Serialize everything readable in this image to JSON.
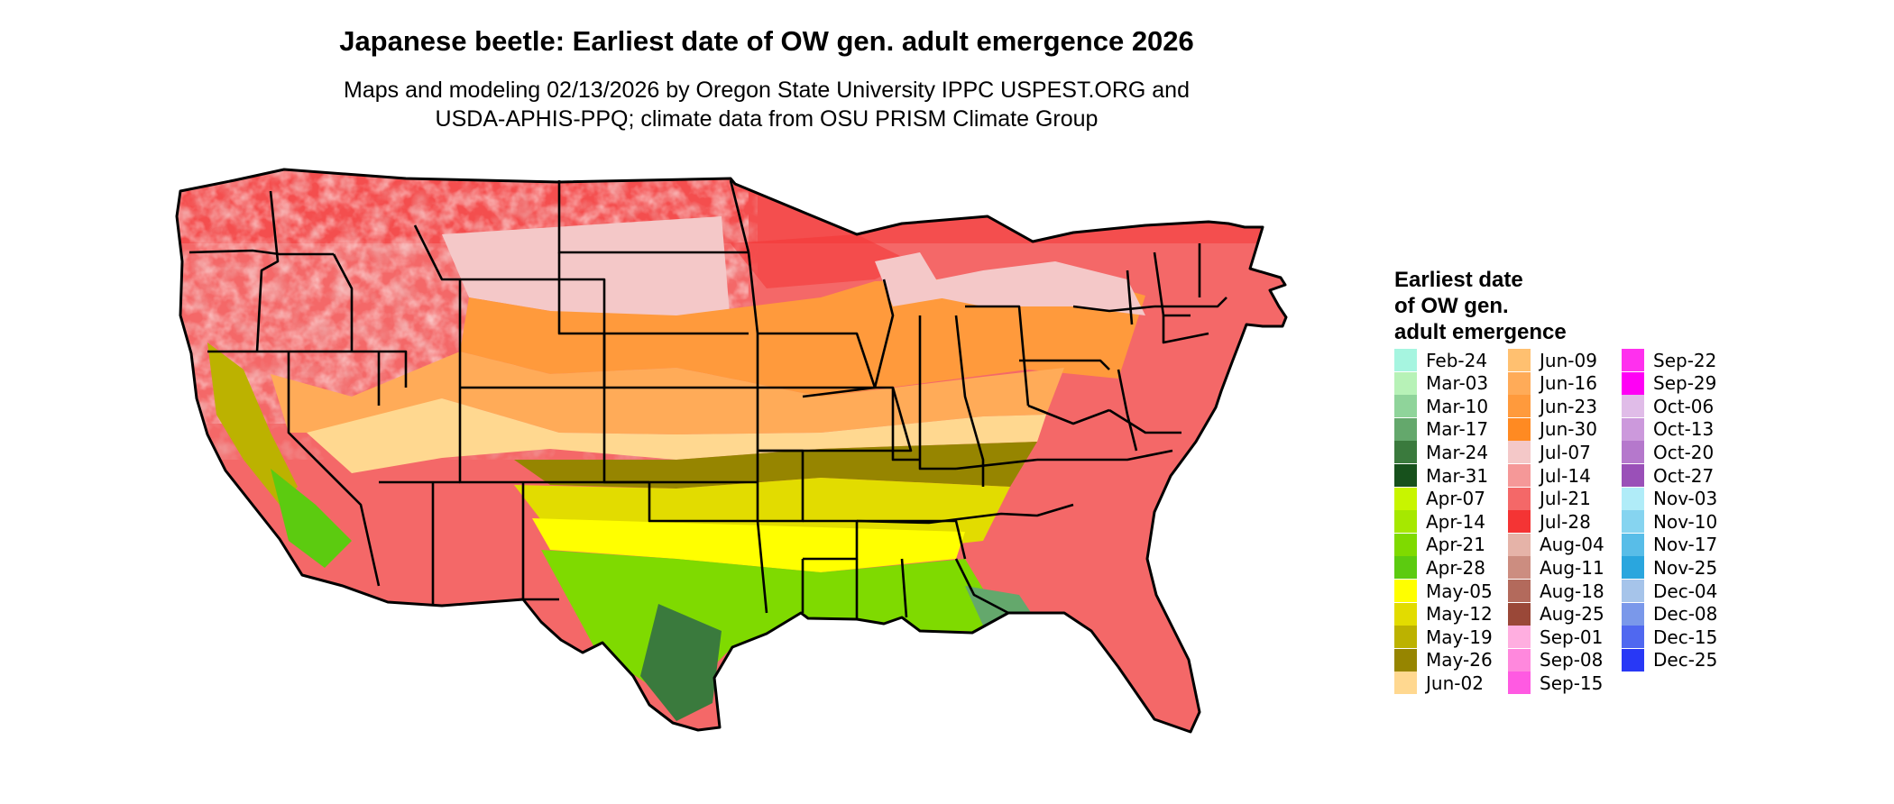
{
  "header": {
    "title": "Japanese beetle: Earliest date of OW gen. adult emergence 2026",
    "subtitle_line1": "Maps and modeling 02/13/2026 by Oregon State University IPPC USPEST.ORG and",
    "subtitle_line2": "USDA-APHIS-PPQ; climate data from OSU PRISM Climate Group"
  },
  "legend": {
    "title_lines": [
      "Earliest date",
      "of OW gen.",
      "adult emergence"
    ],
    "columns": [
      [
        {
          "label": "Feb-24",
          "color": "#a6f5e0"
        },
        {
          "label": "Mar-03",
          "color": "#b7f2b7"
        },
        {
          "label": "Mar-10",
          "color": "#8fd49a"
        },
        {
          "label": "Mar-17",
          "color": "#64a86c"
        },
        {
          "label": "Mar-24",
          "color": "#3a7a3d"
        },
        {
          "label": "Mar-31",
          "color": "#17511c"
        },
        {
          "label": "Apr-07",
          "color": "#c8f500"
        },
        {
          "label": "Apr-14",
          "color": "#a6e800"
        },
        {
          "label": "Apr-21",
          "color": "#7fda00"
        },
        {
          "label": "Apr-28",
          "color": "#5ccb10"
        },
        {
          "label": "May-05",
          "color": "#ffff00"
        },
        {
          "label": "May-12",
          "color": "#e2dc00"
        },
        {
          "label": "May-19",
          "color": "#bcb200"
        },
        {
          "label": "May-26",
          "color": "#968500"
        },
        {
          "label": "Jun-02",
          "color": "#ffd890"
        }
      ],
      [
        {
          "label": "Jun-09",
          "color": "#ffc070"
        },
        {
          "label": "Jun-16",
          "color": "#ffab58"
        },
        {
          "label": "Jun-23",
          "color": "#ff9a3c"
        },
        {
          "label": "Jun-30",
          "color": "#ff8a22"
        },
        {
          "label": "Jul-07",
          "color": "#f4c8c8"
        },
        {
          "label": "Jul-14",
          "color": "#f59898"
        },
        {
          "label": "Jul-21",
          "color": "#f46868"
        },
        {
          "label": "Jul-28",
          "color": "#f43434"
        },
        {
          "label": "Aug-04",
          "color": "#e5b3a8"
        },
        {
          "label": "Aug-11",
          "color": "#cc8d80"
        },
        {
          "label": "Aug-18",
          "color": "#b36a5c"
        },
        {
          "label": "Aug-25",
          "color": "#9a4838"
        },
        {
          "label": "Sep-01",
          "color": "#ffaee0"
        },
        {
          "label": "Sep-08",
          "color": "#ff88dd"
        },
        {
          "label": "Sep-15",
          "color": "#ff5ae2"
        }
      ],
      [
        {
          "label": "Sep-22",
          "color": "#ff30ee"
        },
        {
          "label": "Sep-29",
          "color": "#ff00f5"
        },
        {
          "label": "Oct-06",
          "color": "#e0bce8"
        },
        {
          "label": "Oct-13",
          "color": "#cc99dc"
        },
        {
          "label": "Oct-20",
          "color": "#b578cc"
        },
        {
          "label": "Oct-27",
          "color": "#9a50b8"
        },
        {
          "label": "Nov-03",
          "color": "#b0ecf8"
        },
        {
          "label": "Nov-10",
          "color": "#86d4f0"
        },
        {
          "label": "Nov-17",
          "color": "#58bde8"
        },
        {
          "label": "Nov-25",
          "color": "#2aa6de"
        },
        {
          "label": "Dec-04",
          "color": "#a6c4ea"
        },
        {
          "label": "Dec-08",
          "color": "#7a98ea"
        },
        {
          "label": "Dec-15",
          "color": "#5068f0"
        },
        {
          "label": "Dec-25",
          "color": "#2838f6"
        }
      ]
    ]
  }
}
